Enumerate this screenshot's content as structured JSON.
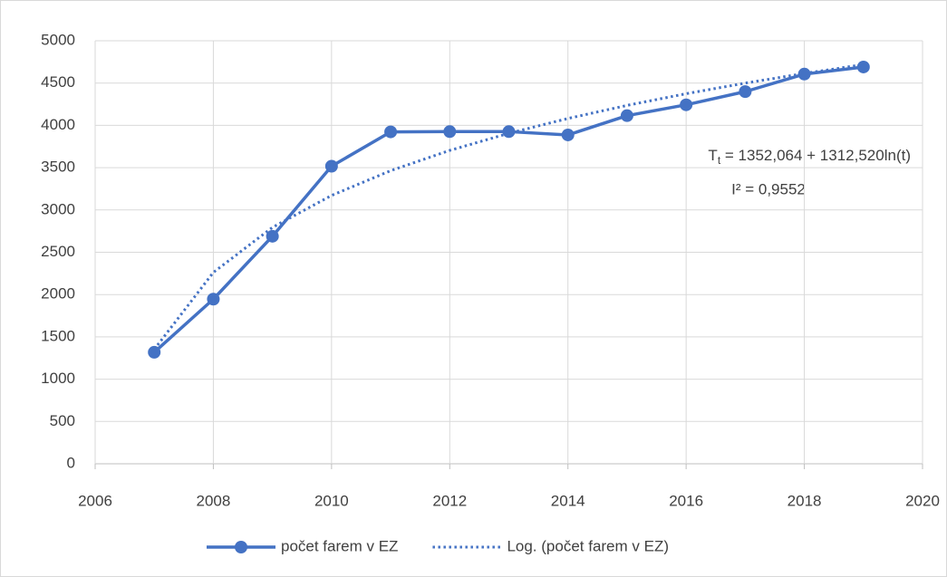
{
  "chart_data": {
    "type": "line",
    "x": [
      2007,
      2008,
      2009,
      2010,
      2011,
      2012,
      2013,
      2014,
      2015,
      2016,
      2017,
      2018,
      2019
    ],
    "series": [
      {
        "name": "počet farem v EZ",
        "color": "#4472c4",
        "style": "solid-markers",
        "values": [
          1318,
          1946,
          2689,
          3517,
          3923,
          3926,
          3926,
          3887,
          4115,
          4243,
          4399,
          4606,
          4690
        ]
      },
      {
        "name": "Log. (počet farem v EZ)",
        "color": "#4472c4",
        "style": "dotted",
        "values": [
          1352.1,
          2261.8,
          2794.0,
          3171.6,
          3464.5,
          3703.8,
          3906.1,
          4081.4,
          4236.0,
          4374.2,
          4499.3,
          4613.6,
          4718.6
        ]
      }
    ],
    "xlim": [
      2006,
      2020
    ],
    "xticks": [
      2006,
      2008,
      2010,
      2012,
      2014,
      2016,
      2018,
      2020
    ],
    "ylim": [
      0,
      5000
    ],
    "yticks": [
      0,
      500,
      1000,
      1500,
      2000,
      2500,
      3000,
      3500,
      4000,
      4500,
      5000
    ],
    "grid": true,
    "legend": "bottom",
    "annotation": {
      "equation": [
        "T",
        "t",
        " = 1352,064 + 1312,520ln(t)"
      ],
      "r_squared": "I² = 0,9552"
    }
  }
}
